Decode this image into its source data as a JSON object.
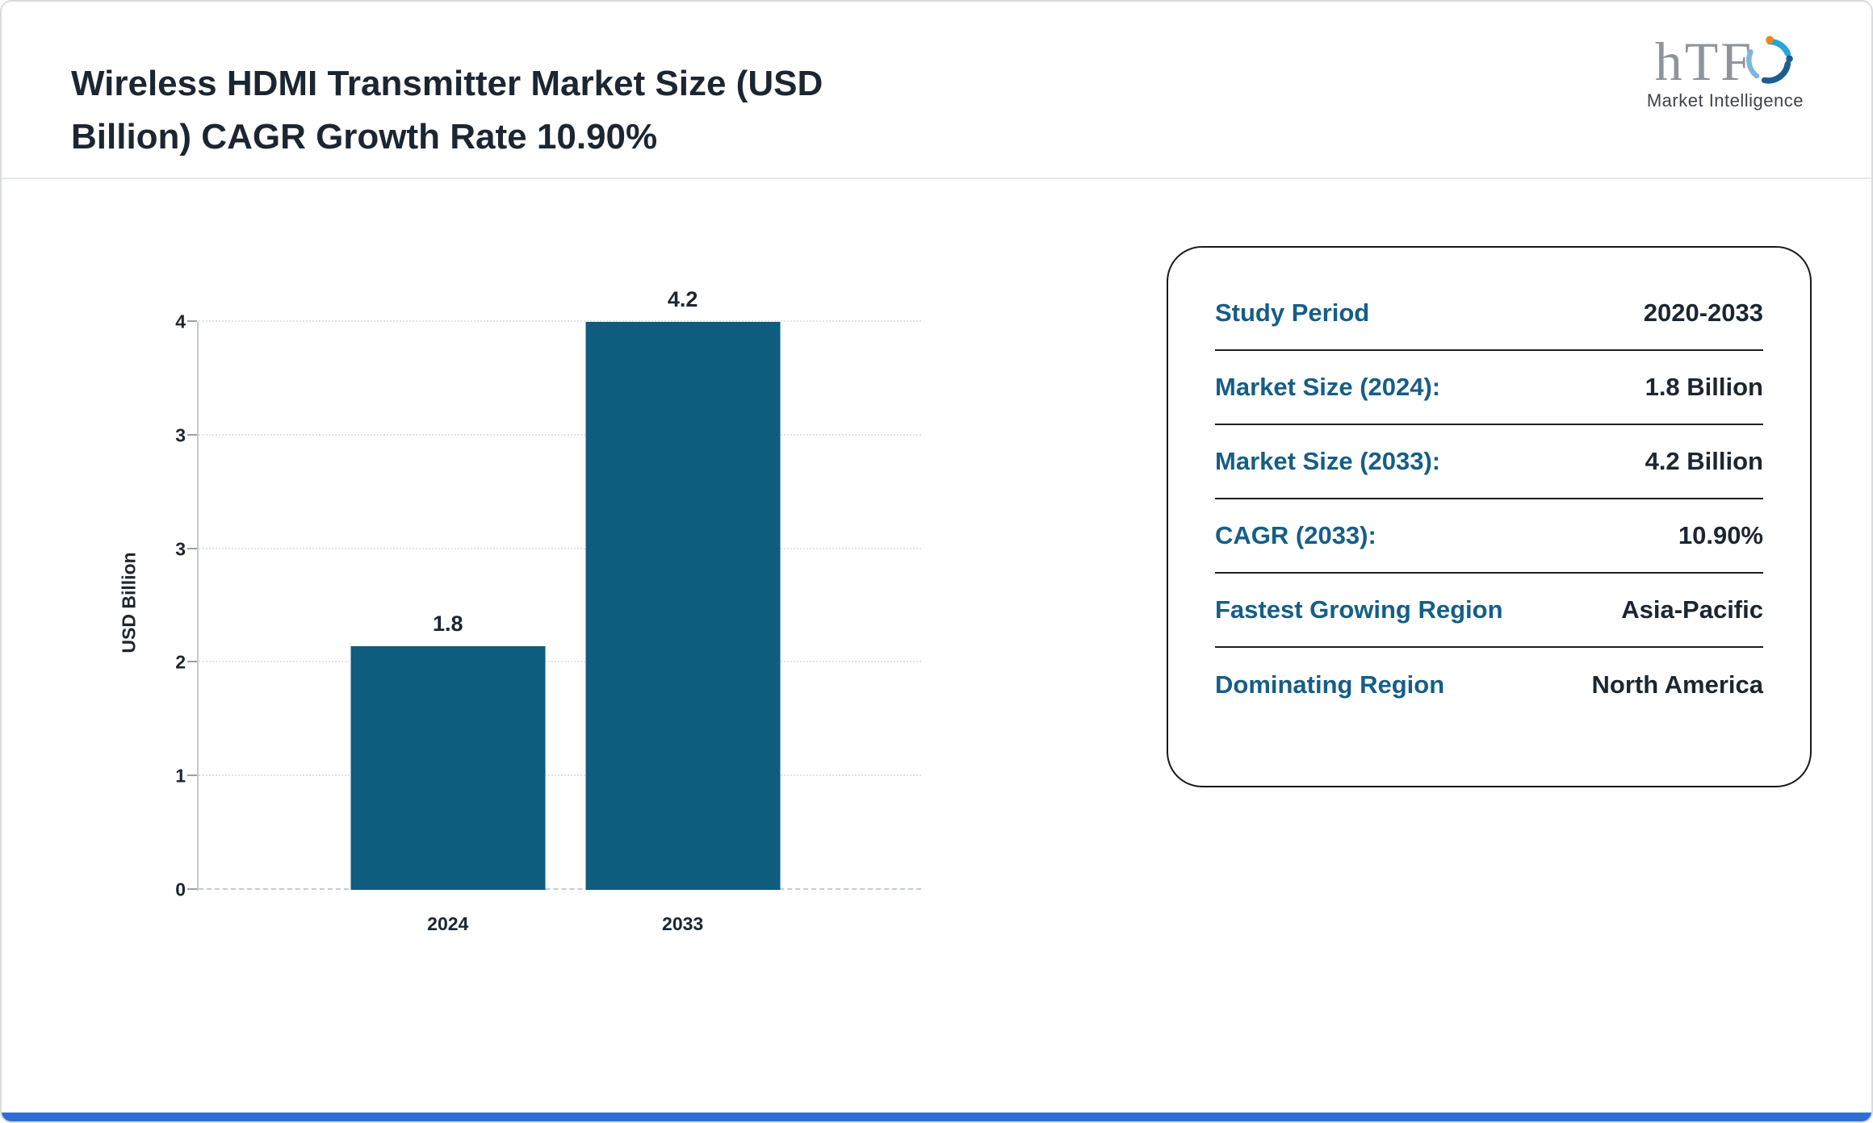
{
  "header": {
    "title": "Wireless HDMI Transmitter Market Size (USD\nBillion) CAGR Growth Rate 10.90%"
  },
  "logo": {
    "text": "hTF",
    "subtext": "Market Intelligence"
  },
  "chart_data": {
    "type": "bar",
    "categories": [
      "2024",
      "2033"
    ],
    "values": [
      1.8,
      4.2
    ],
    "value_labels": [
      "1.8",
      "4.2"
    ],
    "title": "",
    "xlabel": "",
    "ylabel": "USD Billion",
    "ylim": [
      0,
      4.2
    ],
    "ytick_labels_bottom_to_top": [
      "0",
      "1",
      "2",
      "3",
      "3",
      "4"
    ],
    "grid": "horizontal-dotted",
    "legend": "none",
    "bar_color": "#0e5c7e",
    "layout": {
      "bar_centers_pct": [
        34.5,
        67
      ]
    }
  },
  "card": {
    "rows": [
      {
        "label": "Study Period",
        "value": "2020-2033"
      },
      {
        "label": "Market Size (2024):",
        "value": "1.8 Billion"
      },
      {
        "label": "Market Size (2033):",
        "value": "4.2 Billion"
      },
      {
        "label": "CAGR (2033):",
        "value": "10.90%"
      },
      {
        "label": "Fastest Growing Region",
        "value": "Asia-Pacific"
      },
      {
        "label": "Dominating Region",
        "value": "North America"
      }
    ]
  },
  "colors": {
    "bar_teal": "#0e5c7e",
    "card_label_blue": "#155e86",
    "text_dark": "#1b2631",
    "footer_blue": "#2f6fd4"
  }
}
